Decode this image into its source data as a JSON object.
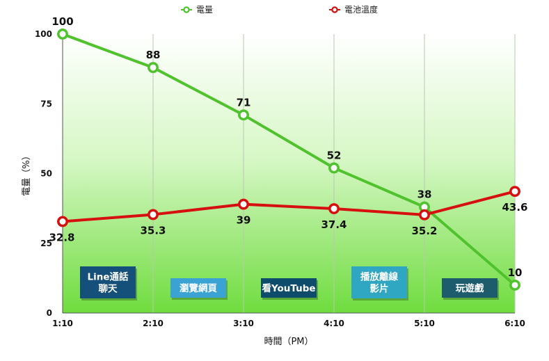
{
  "chart_data": {
    "type": "line",
    "title": "",
    "xlabel": "時間（PM）",
    "ylabel": "電量（%）",
    "categories": [
      "1:10",
      "2:10",
      "3:10",
      "4:10",
      "5:10",
      "6:10"
    ],
    "yticks": [
      "0",
      "25",
      "50",
      "75",
      "100"
    ],
    "ylim": [
      0,
      100
    ],
    "grid": "vertical",
    "legend_position": "top",
    "series": [
      {
        "name": "電量",
        "values": [
          100,
          88,
          71,
          52,
          38,
          10
        ],
        "labels": [
          "100",
          "88",
          "71",
          "52",
          "38",
          "10"
        ],
        "color": "#4fc22d",
        "label_position": "above"
      },
      {
        "name": "電池溫度",
        "values": [
          32.8,
          35.3,
          39,
          37.4,
          35.2,
          43.6
        ],
        "labels": [
          "32.8",
          "35.3",
          "39",
          "37.4",
          "35.2",
          "43.6"
        ],
        "color": "#d60f0f",
        "label_position": "below"
      }
    ],
    "annotations": [
      {
        "text_lines": [
          "Line通話",
          "聊天"
        ],
        "from": 0,
        "to": 1,
        "bg": "#14507a",
        "fg": "#ffffff"
      },
      {
        "text_lines": [
          "瀏覽網頁"
        ],
        "from": 1,
        "to": 2,
        "bg": "#3aa3d4",
        "fg": "#ffffff"
      },
      {
        "text_lines": [
          "看YouTube"
        ],
        "from": 2,
        "to": 3,
        "bg": "#0d4d6b",
        "fg": "#ffffff"
      },
      {
        "text_lines": [
          "播放離線",
          "影片"
        ],
        "from": 3,
        "to": 4,
        "bg": "#2fa7c2",
        "fg": "#ffffff"
      },
      {
        "text_lines": [
          "玩遊戲"
        ],
        "from": 4,
        "to": 5,
        "bg": "#1d5c6c",
        "fg": "#ffffff"
      }
    ]
  }
}
